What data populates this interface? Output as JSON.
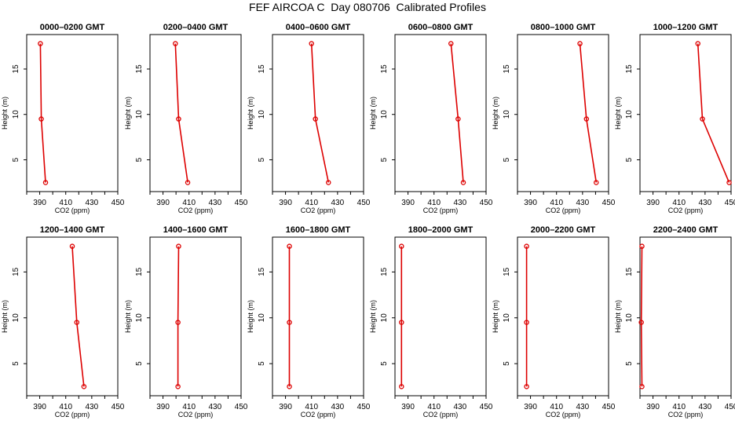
{
  "title": "FEF AIRCOA C  Day 080706  Calibrated Profiles",
  "colors": {
    "series": "#dd0000",
    "axis": "#000000"
  },
  "chart_data": [
    {
      "type": "line",
      "title": "0000–0200 GMT",
      "xlabel": "CO2 (ppm)",
      "ylabel": "Height (m)",
      "xlim": [
        380,
        450
      ],
      "ylim": [
        1.5,
        18.8
      ],
      "xticks": [
        390,
        410,
        430,
        450
      ],
      "yticks": [
        5,
        10,
        15
      ],
      "grid": false,
      "series": [
        {
          "x": [
            390.5,
            391.2,
            394.5
          ],
          "y": [
            17.8,
            9.5,
            2.5
          ]
        }
      ]
    },
    {
      "type": "line",
      "title": "0200–0400 GMT",
      "xlabel": "CO2 (ppm)",
      "ylabel": "Height (m)",
      "xlim": [
        380,
        450
      ],
      "ylim": [
        1.5,
        18.8
      ],
      "xticks": [
        390,
        410,
        430,
        450
      ],
      "yticks": [
        5,
        10,
        15
      ],
      "grid": false,
      "series": [
        {
          "x": [
            399.5,
            402.0,
            409.0
          ],
          "y": [
            17.8,
            9.5,
            2.5
          ]
        }
      ]
    },
    {
      "type": "line",
      "title": "0400–0600 GMT",
      "xlabel": "CO2 (ppm)",
      "ylabel": "Height (m)",
      "xlim": [
        380,
        450
      ],
      "ylim": [
        1.5,
        18.8
      ],
      "xticks": [
        390,
        410,
        430,
        450
      ],
      "yticks": [
        5,
        10,
        15
      ],
      "grid": false,
      "series": [
        {
          "x": [
            410.0,
            413.0,
            423.0
          ],
          "y": [
            17.8,
            9.5,
            2.5
          ]
        }
      ]
    },
    {
      "type": "line",
      "title": "0600–0800 GMT",
      "xlabel": "CO2 (ppm)",
      "ylabel": "Height (m)",
      "xlim": [
        380,
        450
      ],
      "ylim": [
        1.5,
        18.8
      ],
      "xticks": [
        390,
        410,
        430,
        450
      ],
      "yticks": [
        5,
        10,
        15
      ],
      "grid": false,
      "series": [
        {
          "x": [
            423.0,
            428.5,
            432.5
          ],
          "y": [
            17.8,
            9.5,
            2.5
          ]
        }
      ]
    },
    {
      "type": "line",
      "title": "0800–1000 GMT",
      "xlabel": "CO2 (ppm)",
      "ylabel": "Height (m)",
      "xlim": [
        380,
        450
      ],
      "ylim": [
        1.5,
        18.8
      ],
      "xticks": [
        390,
        410,
        430,
        450
      ],
      "yticks": [
        5,
        10,
        15
      ],
      "grid": false,
      "series": [
        {
          "x": [
            428.0,
            433.0,
            440.5
          ],
          "y": [
            17.8,
            9.5,
            2.5
          ]
        }
      ]
    },
    {
      "type": "line",
      "title": "1000–1200 GMT",
      "xlabel": "CO2 (ppm)",
      "ylabel": "Height (m)",
      "xlim": [
        380,
        450
      ],
      "ylim": [
        1.5,
        18.8
      ],
      "xticks": [
        390,
        410,
        430,
        450
      ],
      "yticks": [
        5,
        10,
        15
      ],
      "grid": false,
      "series": [
        {
          "x": [
            424.5,
            428.0,
            448.5
          ],
          "y": [
            17.8,
            9.5,
            2.5
          ]
        }
      ]
    },
    {
      "type": "line",
      "title": "1200–1400 GMT",
      "xlabel": "CO2 (ppm)",
      "ylabel": "Height (m)",
      "xlim": [
        380,
        450
      ],
      "ylim": [
        1.5,
        18.8
      ],
      "xticks": [
        390,
        410,
        430,
        450
      ],
      "yticks": [
        5,
        10,
        15
      ],
      "grid": false,
      "series": [
        {
          "x": [
            415.0,
            418.5,
            424.0
          ],
          "y": [
            17.8,
            9.5,
            2.5
          ]
        }
      ]
    },
    {
      "type": "line",
      "title": "1400–1600 GMT",
      "xlabel": "CO2 (ppm)",
      "ylabel": "Height (m)",
      "xlim": [
        380,
        450
      ],
      "ylim": [
        1.5,
        18.8
      ],
      "xticks": [
        390,
        410,
        430,
        450
      ],
      "yticks": [
        5,
        10,
        15
      ],
      "grid": false,
      "series": [
        {
          "x": [
            402.0,
            401.5,
            401.5
          ],
          "y": [
            17.8,
            9.5,
            2.5
          ]
        }
      ]
    },
    {
      "type": "line",
      "title": "1600–1800 GMT",
      "xlabel": "CO2 (ppm)",
      "ylabel": "Height (m)",
      "xlim": [
        380,
        450
      ],
      "ylim": [
        1.5,
        18.8
      ],
      "xticks": [
        390,
        410,
        430,
        450
      ],
      "yticks": [
        5,
        10,
        15
      ],
      "grid": false,
      "series": [
        {
          "x": [
            393.0,
            393.0,
            393.0
          ],
          "y": [
            17.8,
            9.5,
            2.5
          ]
        }
      ]
    },
    {
      "type": "line",
      "title": "1800–2000 GMT",
      "xlabel": "CO2 (ppm)",
      "ylabel": "Height (m)",
      "xlim": [
        380,
        450
      ],
      "ylim": [
        1.5,
        18.8
      ],
      "xticks": [
        390,
        410,
        430,
        450
      ],
      "yticks": [
        5,
        10,
        15
      ],
      "grid": false,
      "series": [
        {
          "x": [
            385.0,
            385.0,
            385.0
          ],
          "y": [
            17.8,
            9.5,
            2.5
          ]
        }
      ]
    },
    {
      "type": "line",
      "title": "2000–2200 GMT",
      "xlabel": "CO2 (ppm)",
      "ylabel": "Height (m)",
      "xlim": [
        380,
        450
      ],
      "ylim": [
        1.5,
        18.8
      ],
      "xticks": [
        390,
        410,
        430,
        450
      ],
      "yticks": [
        5,
        10,
        15
      ],
      "grid": false,
      "series": [
        {
          "x": [
            387.0,
            387.0,
            387.0
          ],
          "y": [
            17.8,
            9.5,
            2.5
          ]
        }
      ]
    },
    {
      "type": "line",
      "title": "2200–2400 GMT",
      "xlabel": "CO2 (ppm)",
      "ylabel": "Height (m)",
      "xlim": [
        380,
        450
      ],
      "ylim": [
        1.5,
        18.8
      ],
      "xticks": [
        390,
        410,
        430,
        450
      ],
      "yticks": [
        5,
        10,
        15
      ],
      "grid": false,
      "series": [
        {
          "x": [
            381.5,
            381.0,
            381.5
          ],
          "y": [
            17.8,
            9.5,
            2.5
          ]
        }
      ]
    }
  ]
}
